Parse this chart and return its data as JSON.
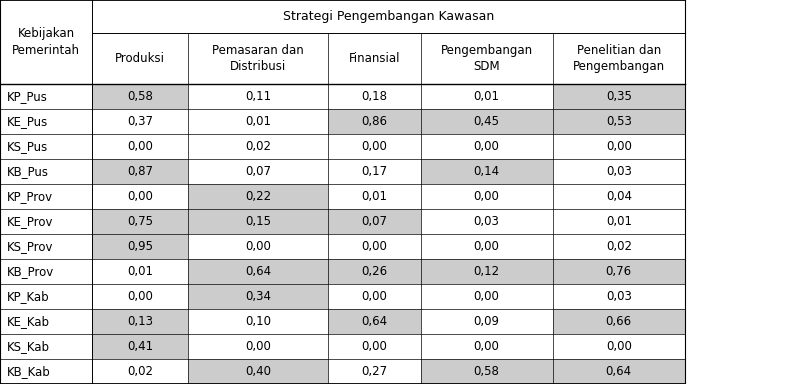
{
  "title": "Strategi Pengembangan Kawasan",
  "col_headers": [
    "Produksi",
    "Pemasaran dan\nDistribusi",
    "Finansial",
    "Pengembangan\nSDM",
    "Penelitian dan\nPengembangan"
  ],
  "row_labels": [
    "KP_Pus",
    "KE_Pus",
    "KS_Pus",
    "KB_Pus",
    "KP_Prov",
    "KE_Prov",
    "KS_Prov",
    "KB_Prov",
    "KP_Kab",
    "KE_Kab",
    "KS_Kab",
    "KB_Kab"
  ],
  "data": [
    [
      "0,58",
      "0,11",
      "0,18",
      "0,01",
      "0,35"
    ],
    [
      "0,37",
      "0,01",
      "0,86",
      "0,45",
      "0,53"
    ],
    [
      "0,00",
      "0,02",
      "0,00",
      "0,00",
      "0,00"
    ],
    [
      "0,87",
      "0,07",
      "0,17",
      "0,14",
      "0,03"
    ],
    [
      "0,00",
      "0,22",
      "0,01",
      "0,00",
      "0,04"
    ],
    [
      "0,75",
      "0,15",
      "0,07",
      "0,03",
      "0,01"
    ],
    [
      "0,95",
      "0,00",
      "0,00",
      "0,00",
      "0,02"
    ],
    [
      "0,01",
      "0,64",
      "0,26",
      "0,12",
      "0,76"
    ],
    [
      "0,00",
      "0,34",
      "0,00",
      "0,00",
      "0,03"
    ],
    [
      "0,13",
      "0,10",
      "0,64",
      "0,09",
      "0,66"
    ],
    [
      "0,41",
      "0,00",
      "0,00",
      "0,00",
      "0,00"
    ],
    [
      "0,02",
      "0,40",
      "0,27",
      "0,58",
      "0,64"
    ]
  ],
  "cell_shading": [
    [
      true,
      false,
      false,
      false,
      true
    ],
    [
      false,
      false,
      true,
      true,
      true
    ],
    [
      false,
      false,
      false,
      false,
      false
    ],
    [
      true,
      false,
      false,
      true,
      false
    ],
    [
      false,
      true,
      false,
      false,
      false
    ],
    [
      true,
      true,
      true,
      false,
      false
    ],
    [
      true,
      false,
      false,
      false,
      false
    ],
    [
      false,
      true,
      true,
      true,
      true
    ],
    [
      false,
      true,
      false,
      false,
      false
    ],
    [
      true,
      false,
      true,
      false,
      true
    ],
    [
      true,
      false,
      false,
      false,
      false
    ],
    [
      false,
      true,
      false,
      true,
      true
    ]
  ],
  "gray_color": "#cccccc",
  "font_size": 8.5,
  "left_col_label": "Kebijakan\nPemerintah"
}
